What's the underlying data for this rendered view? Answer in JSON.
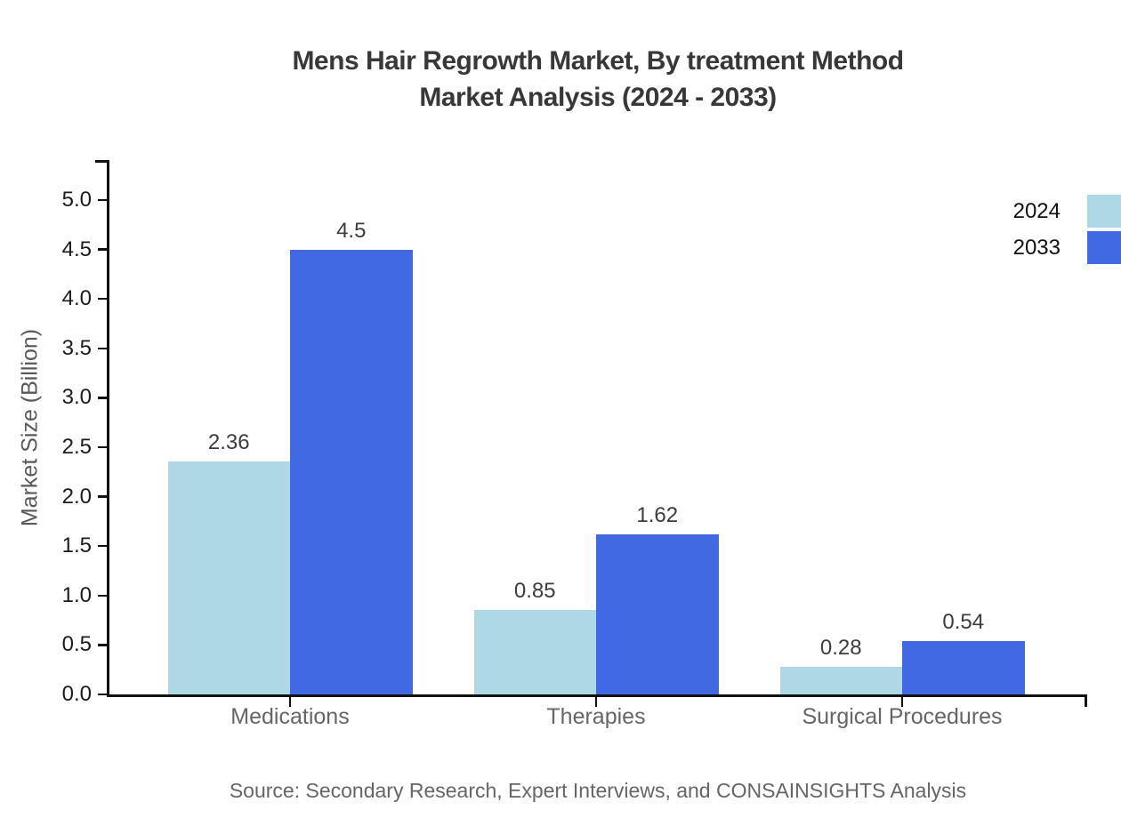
{
  "title": {
    "line1": "Mens Hair Regrowth Market, By treatment Method",
    "line2": "Market Analysis (2024 - 2033)"
  },
  "source": "Source: Secondary Research, Expert Interviews, and CONSAINSIGHTS Analysis",
  "chart_data": {
    "type": "bar",
    "title": "Mens Hair Regrowth Market, By treatment Method Market Analysis (2024 - 2033)",
    "categories": [
      "Medications",
      "Therapies",
      "Surgical Procedures"
    ],
    "series": [
      {
        "name": "2024",
        "color": "#ADD8E6",
        "values": [
          2.36,
          0.85,
          0.28
        ]
      },
      {
        "name": "2033",
        "color": "#4169E1",
        "values": [
          4.5,
          1.62,
          0.54
        ]
      }
    ],
    "xlabel": "",
    "ylabel": "Market Size (Billion)",
    "ylim": [
      0,
      5.5
    ],
    "yticks": [
      "0.0",
      "0.5",
      "1.0",
      "1.5",
      "2.0",
      "2.5",
      "3.0",
      "3.5",
      "4.0",
      "4.5",
      "5.0"
    ],
    "grid": false,
    "legend_position": "top-right",
    "axis_color": "#111111"
  }
}
